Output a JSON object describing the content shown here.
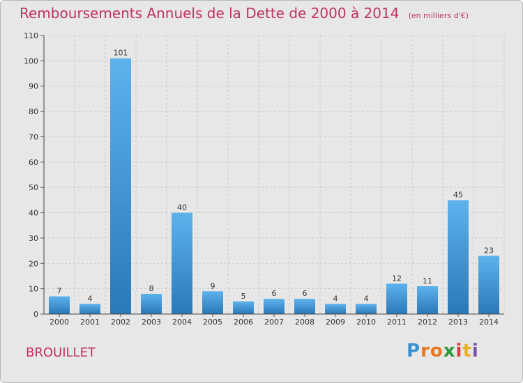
{
  "chart_data": {
    "type": "bar",
    "title": "Remboursements Annuels de la Dette de 2000 à 2014",
    "unit_note": "(en milliers d'€)",
    "categories": [
      "2000",
      "2001",
      "2002",
      "2003",
      "2004",
      "2005",
      "2006",
      "2007",
      "2008",
      "2009",
      "2010",
      "2011",
      "2012",
      "2013",
      "2014"
    ],
    "values": [
      7,
      4,
      101,
      8,
      40,
      9,
      5,
      6,
      6,
      4,
      4,
      12,
      11,
      45,
      23
    ],
    "ylim": [
      0,
      110
    ],
    "yticks": [
      0,
      10,
      20,
      30,
      40,
      50,
      60,
      70,
      80,
      90,
      100,
      110
    ],
    "grid": true,
    "bar_color": "#3d97d8"
  },
  "footer": {
    "place": "BROUILLET",
    "logo_letters": [
      "P",
      "r",
      "o",
      "x",
      "i",
      "t",
      "i"
    ],
    "logo_colors": [
      "#3a8fd0",
      "#e8751f",
      "#e8751f",
      "#2a9a3a",
      "#d93a3a",
      "#e8b21f",
      "#7a4fb0"
    ]
  }
}
